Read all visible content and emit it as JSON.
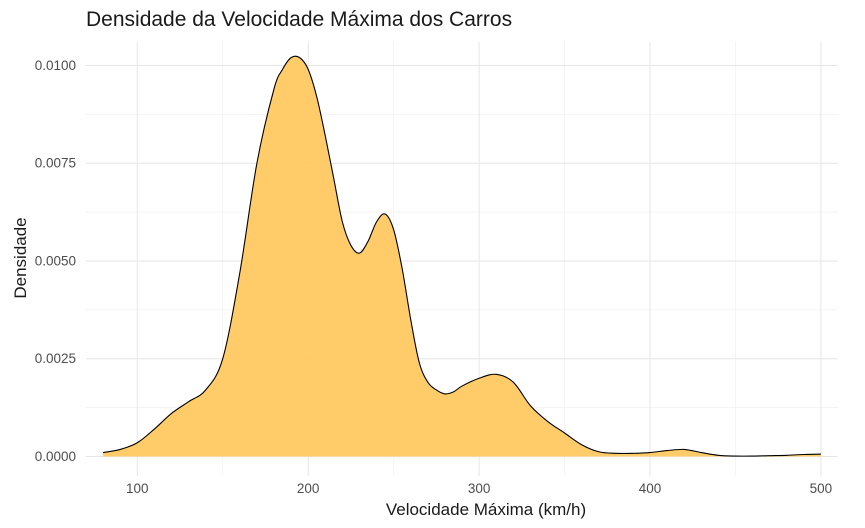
{
  "chart_data": {
    "type": "area",
    "title": "Densidade da Velocidade Máxima dos Carros",
    "xlabel": "Velocidade Máxima (km/h)",
    "ylabel": "Densidade",
    "xlim": [
      70,
      510
    ],
    "ylim": [
      -0.0005,
      0.0106
    ],
    "x_ticks": [
      100,
      200,
      300,
      400,
      500
    ],
    "x_tick_labels": [
      "100",
      "200",
      "300",
      "400",
      "500"
    ],
    "y_ticks": [
      0,
      0.0025,
      0.005,
      0.0075,
      0.01
    ],
    "y_tick_labels": [
      "0.0000",
      "0.0025",
      "0.0050",
      "0.0075",
      "0.0100"
    ],
    "grid": true,
    "legend": "none",
    "fill_color": "#FFC85E",
    "line_color": "#000000",
    "series": [
      {
        "x": [
          80,
          90,
          100,
          110,
          120,
          130,
          140,
          150,
          160,
          170,
          180,
          185,
          190,
          195,
          200,
          205,
          210,
          215,
          220,
          225,
          230,
          235,
          240,
          245,
          250,
          255,
          260,
          265,
          270,
          275,
          280,
          285,
          290,
          300,
          310,
          320,
          330,
          340,
          350,
          360,
          370,
          380,
          390,
          400,
          410,
          420,
          430,
          440,
          450,
          460,
          470,
          480,
          490,
          500
        ],
        "y": [
          0.0001,
          0.00018,
          0.00035,
          0.0007,
          0.0011,
          0.0014,
          0.0017,
          0.0025,
          0.0047,
          0.0075,
          0.0094,
          0.0099,
          0.0102,
          0.0102,
          0.0099,
          0.0092,
          0.0082,
          0.0071,
          0.006,
          0.0054,
          0.0052,
          0.0055,
          0.006,
          0.0062,
          0.0058,
          0.0048,
          0.0035,
          0.0024,
          0.0019,
          0.0017,
          0.0016,
          0.00165,
          0.0018,
          0.002,
          0.0021,
          0.0019,
          0.0013,
          0.0009,
          0.0006,
          0.0003,
          0.00012,
          8e-05,
          8e-05,
          0.0001,
          0.00015,
          0.00018,
          0.0001,
          3e-05,
          1e-05,
          1e-05,
          2e-05,
          3e-05,
          5e-05,
          6e-05
        ]
      }
    ]
  }
}
